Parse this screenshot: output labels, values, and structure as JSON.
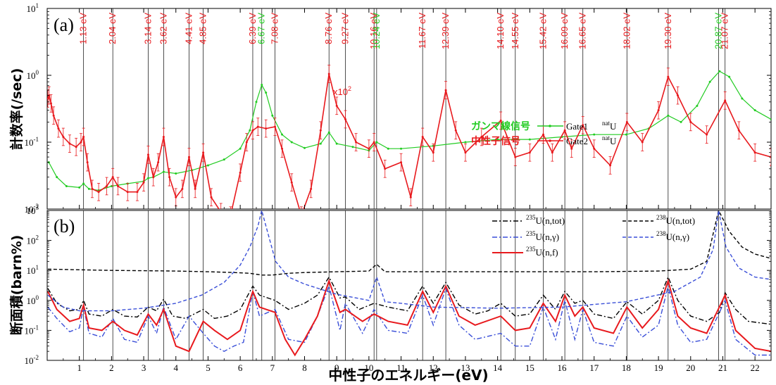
{
  "chart_data": [
    {
      "type": "line",
      "panel_label": "(a)",
      "ylabel": "計数率(/sec)",
      "xlim": [
        0,
        22.5
      ],
      "ylim": [
        0.01,
        10
      ],
      "yscale": "log",
      "x_ticks": [
        "1",
        "2",
        "3",
        "4",
        "5",
        "6",
        "7",
        "8",
        "9",
        "10",
        "11",
        "12",
        "13",
        "14",
        "15",
        "16",
        "17",
        "18",
        "19",
        "20",
        "21",
        "22"
      ],
      "y_ticks": [
        {
          "value": 0.01,
          "base": "10",
          "exp": "-2"
        },
        {
          "value": 0.1,
          "base": "10",
          "exp": "-1"
        },
        {
          "value": 1,
          "base": "10",
          "exp": "0"
        },
        {
          "value": 10,
          "base": "10",
          "exp": "1"
        }
      ],
      "resonance_lines": [
        {
          "x": 1.13,
          "label": "1.13 eV",
          "color": "#e8191d"
        },
        {
          "x": 2.04,
          "label": "2.04 eV",
          "color": "#e8191d"
        },
        {
          "x": 3.14,
          "label": "3.14 eV",
          "color": "#e8191d"
        },
        {
          "x": 3.62,
          "label": "3.62 eV",
          "color": "#e8191d"
        },
        {
          "x": 4.41,
          "label": "4.41 eV",
          "color": "#e8191d"
        },
        {
          "x": 4.85,
          "label": "4.85 eV",
          "color": "#e8191d"
        },
        {
          "x": 6.39,
          "label": "6.39 eV",
          "color": "#e8191d"
        },
        {
          "x": 6.67,
          "label": "6.67 eV",
          "color": "#22cc22"
        },
        {
          "x": 7.08,
          "label": "7.08 eV",
          "color": "#e8191d"
        },
        {
          "x": 8.76,
          "label": "8.76 eV",
          "color": "#e8191d"
        },
        {
          "x": 9.27,
          "label": "9.27 eV",
          "color": "#e8191d"
        },
        {
          "x": 10.16,
          "label": "10.16 eV",
          "color": "#e8191d"
        },
        {
          "x": 10.24,
          "label": "10.24 eV",
          "color": "#22cc22"
        },
        {
          "x": 11.67,
          "label": "11.67 eV",
          "color": "#e8191d"
        },
        {
          "x": 12.39,
          "label": "12.39 eV",
          "color": "#e8191d"
        },
        {
          "x": 14.1,
          "label": "14.10 eV",
          "color": "#e8191d"
        },
        {
          "x": 14.55,
          "label": "14.55 eV",
          "color": "#e8191d"
        },
        {
          "x": 15.42,
          "label": "15.42 eV",
          "color": "#e8191d"
        },
        {
          "x": 16.09,
          "label": "16.09 eV",
          "color": "#e8191d"
        },
        {
          "x": 16.65,
          "label": "16.65 eV",
          "color": "#e8191d"
        },
        {
          "x": 18.02,
          "label": "18.02 eV",
          "color": "#e8191d"
        },
        {
          "x": 19.3,
          "label": "19.30 eV",
          "color": "#e8191d"
        },
        {
          "x": 20.87,
          "label": "20.87 eV",
          "color": "#22cc22"
        },
        {
          "x": 21.07,
          "label": "21.07 eV",
          "color": "#e8191d"
        }
      ],
      "series": [
        {
          "name": "ガンマ線信号",
          "detail": "Gate1",
          "sample_sup": "nat",
          "sample": "U",
          "color": "#22cc22",
          "x": [
            0.05,
            0.3,
            0.6,
            1.0,
            1.13,
            1.3,
            1.6,
            2.0,
            2.5,
            3.0,
            3.14,
            3.3,
            3.62,
            4.0,
            4.5,
            5.0,
            5.5,
            6.0,
            6.3,
            6.5,
            6.67,
            6.8,
            7.0,
            7.3,
            7.6,
            8.0,
            8.5,
            8.76,
            9.0,
            9.5,
            10.0,
            10.24,
            10.6,
            11.0,
            12.0,
            13.0,
            14.0,
            15.0,
            16.0,
            17.0,
            18.0,
            18.7,
            19.3,
            19.7,
            20.2,
            20.6,
            20.9,
            21.2,
            21.6,
            22.0,
            22.5
          ],
          "y": [
            0.05,
            0.03,
            0.022,
            0.021,
            0.024,
            0.02,
            0.019,
            0.022,
            0.024,
            0.026,
            0.029,
            0.03,
            0.036,
            0.034,
            0.038,
            0.045,
            0.055,
            0.08,
            0.15,
            0.4,
            0.72,
            0.55,
            0.25,
            0.13,
            0.1,
            0.082,
            0.095,
            0.14,
            0.095,
            0.085,
            0.075,
            0.1,
            0.08,
            0.08,
            0.088,
            0.1,
            0.11,
            0.11,
            0.12,
            0.13,
            0.13,
            0.16,
            0.25,
            0.2,
            0.35,
            0.8,
            1.15,
            0.95,
            0.45,
            0.3,
            0.22
          ]
        },
        {
          "name": "中性子信号",
          "detail": "Gate2",
          "sample_sup": "nat",
          "sample": "U",
          "annotation": "x10",
          "annotation_sup": "2",
          "color": "#e8191d",
          "x": [
            0.02,
            0.06,
            0.12,
            0.2,
            0.35,
            0.5,
            0.7,
            0.9,
            1.05,
            1.13,
            1.25,
            1.4,
            1.6,
            1.85,
            2.04,
            2.2,
            2.5,
            2.8,
            3.0,
            3.14,
            3.3,
            3.45,
            3.62,
            3.8,
            4.0,
            4.2,
            4.41,
            4.6,
            4.85,
            5.1,
            5.4,
            5.7,
            6.0,
            6.2,
            6.39,
            6.55,
            6.8,
            7.08,
            7.3,
            7.6,
            7.9,
            8.2,
            8.5,
            8.76,
            9.0,
            9.27,
            9.6,
            10.0,
            10.16,
            10.5,
            11.0,
            11.3,
            11.67,
            12.0,
            12.39,
            12.7,
            13.0,
            13.5,
            14.1,
            14.55,
            15.0,
            15.42,
            15.7,
            16.09,
            16.3,
            16.65,
            17.0,
            17.5,
            18.02,
            18.5,
            19.0,
            19.3,
            19.6,
            20.0,
            20.5,
            21.07,
            21.5,
            22.0,
            22.5
          ],
          "y": [
            0.45,
            0.5,
            0.38,
            0.25,
            0.16,
            0.12,
            0.095,
            0.085,
            0.1,
            0.12,
            0.05,
            0.02,
            0.018,
            0.022,
            0.03,
            0.022,
            0.018,
            0.018,
            0.025,
            0.065,
            0.03,
            0.05,
            0.12,
            0.03,
            0.015,
            0.02,
            0.06,
            0.02,
            0.07,
            0.015,
            0.009,
            0.008,
            0.035,
            0.1,
            0.15,
            0.17,
            0.16,
            0.17,
            0.08,
            0.025,
            0.008,
            0.02,
            0.15,
            1.05,
            0.35,
            0.22,
            0.1,
            0.08,
            0.1,
            0.04,
            0.05,
            0.015,
            0.12,
            0.07,
            0.6,
            0.15,
            0.07,
            0.12,
            0.21,
            0.06,
            0.07,
            0.13,
            0.07,
            0.15,
            0.08,
            0.18,
            0.08,
            0.045,
            0.2,
            0.1,
            0.3,
            0.95,
            0.5,
            0.2,
            0.13,
            0.42,
            0.15,
            0.07,
            0.06
          ]
        }
      ]
    },
    {
      "type": "line",
      "panel_label": "(b)",
      "ylabel": "断面積(barn%)",
      "xlabel": "中性子のエネルギー(eV)",
      "xlim": [
        0,
        22.5
      ],
      "ylim": [
        0.01,
        1000
      ],
      "yscale": "log",
      "x_ticks": [
        "1",
        "2",
        "3",
        "4",
        "5",
        "6",
        "7",
        "8",
        "9",
        "10",
        "11",
        "12",
        "13",
        "14",
        "15",
        "16",
        "17",
        "18",
        "19",
        "20",
        "21",
        "22"
      ],
      "y_ticks": [
        {
          "value": 0.01,
          "base": "10",
          "exp": "-2"
        },
        {
          "value": 0.1,
          "base": "10",
          "exp": "-1"
        },
        {
          "value": 1,
          "base": "10",
          "exp": "0"
        },
        {
          "value": 10,
          "base": "10",
          "exp": "1"
        },
        {
          "value": 100,
          "base": "10",
          "exp": "2"
        },
        {
          "value": 1000,
          "base": "10",
          "exp": "3"
        }
      ],
      "resonance_x": [
        1.13,
        2.04,
        3.14,
        3.62,
        4.41,
        4.85,
        6.39,
        6.67,
        7.08,
        8.76,
        9.27,
        10.16,
        10.24,
        11.67,
        12.39,
        14.1,
        14.55,
        15.42,
        16.09,
        16.65,
        18.02,
        19.3,
        20.87,
        21.07
      ],
      "series": [
        {
          "name_sup": "235",
          "name": "U(n,tot)",
          "style": "dashdot",
          "color": "#000000",
          "x": [
            0.02,
            0.3,
            0.7,
            1.0,
            1.13,
            1.3,
            1.7,
            2.04,
            2.4,
            2.8,
            3.14,
            3.4,
            3.62,
            3.9,
            4.3,
            4.85,
            5.2,
            5.6,
            6.0,
            6.39,
            6.6,
            7.08,
            7.5,
            8.0,
            8.4,
            8.76,
            9.1,
            9.27,
            9.7,
            10.16,
            10.6,
            11.2,
            11.67,
            12.0,
            12.39,
            12.8,
            13.3,
            13.7,
            14.1,
            14.55,
            15.0,
            15.42,
            15.8,
            16.09,
            16.4,
            16.65,
            17.0,
            17.6,
            18.02,
            18.5,
            19.0,
            19.3,
            19.6,
            20.0,
            20.5,
            20.9,
            21.07,
            21.4,
            21.8,
            22.5
          ],
          "y": [
            2.5,
            0.8,
            0.45,
            0.5,
            1.0,
            0.35,
            0.3,
            0.5,
            0.3,
            0.28,
            0.6,
            0.45,
            1.1,
            0.3,
            0.25,
            0.5,
            0.25,
            0.3,
            0.5,
            3.0,
            1.5,
            1.0,
            0.5,
            0.8,
            1.5,
            6.0,
            1.2,
            1.3,
            0.5,
            0.8,
            0.6,
            0.45,
            3.0,
            0.8,
            4.0,
            0.7,
            0.35,
            0.45,
            0.8,
            0.3,
            0.35,
            1.5,
            0.5,
            2.0,
            0.8,
            1.0,
            0.35,
            0.25,
            0.9,
            0.35,
            1.0,
            6.0,
            1.0,
            0.3,
            0.2,
            0.4,
            1.8,
            0.5,
            0.2,
            0.16
          ]
        },
        {
          "name_sup": "235",
          "name": "U(n,γ)",
          "style": "dashdot",
          "color": "#3a4fd8",
          "x": [
            0.02,
            0.3,
            0.7,
            1.0,
            1.13,
            1.3,
            1.7,
            2.04,
            2.4,
            2.8,
            3.14,
            3.4,
            3.62,
            4.0,
            4.41,
            4.85,
            5.2,
            5.5,
            5.8,
            6.1,
            6.39,
            6.6,
            7.08,
            7.5,
            8.0,
            8.4,
            8.76,
            9.1,
            9.27,
            9.8,
            10.16,
            10.6,
            11.2,
            11.67,
            12.0,
            12.39,
            12.8,
            13.3,
            14.1,
            14.55,
            15.0,
            15.42,
            15.8,
            16.09,
            16.4,
            16.65,
            17.0,
            17.6,
            18.02,
            18.5,
            19.0,
            19.3,
            19.6,
            20.0,
            20.5,
            21.07,
            21.4,
            22.0,
            22.5
          ],
          "y": [
            0.6,
            0.25,
            0.09,
            0.12,
            0.6,
            0.08,
            0.06,
            0.25,
            0.05,
            0.04,
            0.3,
            0.08,
            0.6,
            0.05,
            0.3,
            0.08,
            0.03,
            0.02,
            0.03,
            0.04,
            2.0,
            0.3,
            0.5,
            0.05,
            0.04,
            0.3,
            3.0,
            0.1,
            0.8,
            0.08,
            0.5,
            0.1,
            0.08,
            1.5,
            0.15,
            2.5,
            0.15,
            0.05,
            0.08,
            0.03,
            0.03,
            0.6,
            0.05,
            1.0,
            0.05,
            0.5,
            0.04,
            0.03,
            0.3,
            0.06,
            0.15,
            3.0,
            0.15,
            0.04,
            0.05,
            1.0,
            0.05,
            0.015,
            0.015
          ]
        },
        {
          "name_sup": "235",
          "name": "U(n,f)",
          "style": "solid",
          "color": "#e8191d",
          "x": [
            0.02,
            0.3,
            0.7,
            1.0,
            1.13,
            1.3,
            1.7,
            2.04,
            2.4,
            2.8,
            3.14,
            3.4,
            3.62,
            4.0,
            4.41,
            4.85,
            5.2,
            5.6,
            6.0,
            6.39,
            6.6,
            7.08,
            7.4,
            7.7,
            8.0,
            8.4,
            8.76,
            9.1,
            9.27,
            9.8,
            10.16,
            10.6,
            11.2,
            11.67,
            12.0,
            12.39,
            12.8,
            13.3,
            14.1,
            14.55,
            15.0,
            15.42,
            15.8,
            16.09,
            16.4,
            16.65,
            17.0,
            17.6,
            18.02,
            18.5,
            19.0,
            19.3,
            19.6,
            20.0,
            20.5,
            21.07,
            21.4,
            22.0,
            22.5
          ],
          "y": [
            2.0,
            0.5,
            0.2,
            0.25,
            0.7,
            0.12,
            0.1,
            0.2,
            0.1,
            0.07,
            0.35,
            0.15,
            0.5,
            0.03,
            0.02,
            0.2,
            0.1,
            0.05,
            0.1,
            2.0,
            0.6,
            0.4,
            0.05,
            0.015,
            0.05,
            0.3,
            4.5,
            0.4,
            0.5,
            0.2,
            0.35,
            0.2,
            0.15,
            2.0,
            0.4,
            3.0,
            0.3,
            0.15,
            0.3,
            0.1,
            0.12,
            0.8,
            0.2,
            1.5,
            0.3,
            0.6,
            0.12,
            0.08,
            0.6,
            0.12,
            0.5,
            4.5,
            0.3,
            0.12,
            0.08,
            1.5,
            0.1,
            0.025,
            0.02
          ]
        },
        {
          "name_sup": "238",
          "name": "U(n,tot)",
          "style": "dashed",
          "color": "#000000",
          "x": [
            0.02,
            1.0,
            2.0,
            3.0,
            4.0,
            5.0,
            5.8,
            6.3,
            6.67,
            7.0,
            7.5,
            8.0,
            9.0,
            10.0,
            10.24,
            10.5,
            11.0,
            13.0,
            15.0,
            17.0,
            19.0,
            20.0,
            20.5,
            20.87,
            21.2,
            21.6,
            22.0,
            22.5
          ],
          "y": [
            11,
            10.5,
            10,
            9.8,
            9.5,
            9.0,
            8.5,
            8.0,
            7.0,
            7.0,
            8.0,
            8.5,
            9.0,
            9.5,
            16,
            9.0,
            9.0,
            9.0,
            9.0,
            9.0,
            9.5,
            11,
            20,
            1000,
            200,
            60,
            35,
            25
          ]
        },
        {
          "name_sup": "238",
          "name": "U(n,γ)",
          "style": "dashed",
          "color": "#3a4fd8",
          "x": [
            0.02,
            0.5,
            1.0,
            2.0,
            3.0,
            4.0,
            4.8,
            5.5,
            6.0,
            6.3,
            6.55,
            6.67,
            6.8,
            7.1,
            7.5,
            8.0,
            9.0,
            10.0,
            10.24,
            10.5,
            11.0,
            12.0,
            14.0,
            16.0,
            18.0,
            19.5,
            20.3,
            20.7,
            20.87,
            21.1,
            21.5,
            22.0,
            22.5
          ],
          "y": [
            1.5,
            0.6,
            0.45,
            0.45,
            0.55,
            0.8,
            1.5,
            4.0,
            15,
            60,
            300,
            1000,
            300,
            20,
            6.0,
            3.5,
            1.6,
            1.0,
            6.0,
            0.9,
            0.8,
            0.6,
            0.55,
            0.6,
            0.9,
            2.0,
            6.0,
            50,
            1000,
            60,
            12,
            6.0,
            5.0
          ]
        }
      ]
    }
  ]
}
